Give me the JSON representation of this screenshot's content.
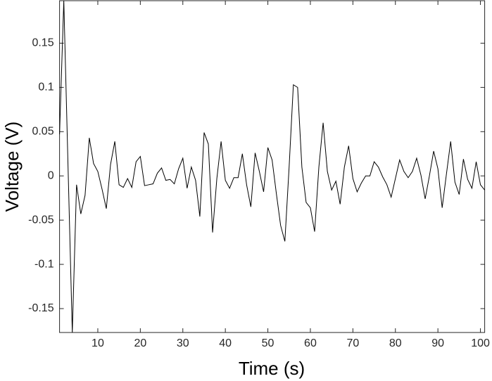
{
  "chart_data": {
    "type": "line",
    "xlabel": "Time (s)",
    "ylabel": "Voltage (V)",
    "x": [
      1,
      2,
      3,
      4,
      5,
      6,
      7,
      8,
      9,
      10,
      11,
      12,
      13,
      14,
      15,
      16,
      17,
      18,
      19,
      20,
      21,
      22,
      23,
      24,
      25,
      26,
      27,
      28,
      29,
      30,
      31,
      32,
      33,
      34,
      35,
      36,
      37,
      38,
      39,
      40,
      41,
      42,
      43,
      44,
      45,
      46,
      47,
      48,
      49,
      50,
      51,
      52,
      53,
      54,
      55,
      56,
      57,
      58,
      59,
      60,
      61,
      62,
      63,
      64,
      65,
      66,
      67,
      68,
      69,
      70,
      71,
      72,
      73,
      74,
      75,
      76,
      77,
      78,
      79,
      80,
      81,
      82,
      83,
      84,
      85,
      86,
      87,
      88,
      89,
      90,
      91,
      92,
      93,
      94,
      95,
      96,
      97,
      98,
      99,
      100,
      101
    ],
    "series": [
      {
        "color": "#000000",
        "values": [
          0.047,
          0.198,
          0.01,
          -0.177,
          -0.01,
          -0.043,
          -0.022,
          0.043,
          0.014,
          0.005,
          -0.015,
          -0.037,
          0.013,
          0.039,
          -0.01,
          -0.013,
          -0.003,
          -0.013,
          0.016,
          0.022,
          -0.011,
          -0.01,
          -0.009,
          0.003,
          0.009,
          -0.005,
          -0.004,
          -0.009,
          0.008,
          0.02,
          -0.014,
          0.01,
          -0.005,
          -0.046,
          0.049,
          0.036,
          -0.064,
          -0.003,
          0.039,
          -0.005,
          -0.014,
          -0.002,
          -0.002,
          0.025,
          -0.01,
          -0.035,
          0.026,
          0.005,
          -0.018,
          0.032,
          0.018,
          -0.02,
          -0.056,
          -0.074,
          0.01,
          0.103,
          0.1,
          0.01,
          -0.03,
          -0.036,
          -0.063,
          0.01,
          0.06,
          0.005,
          -0.016,
          -0.006,
          -0.032,
          0.01,
          0.034,
          -0.003,
          -0.018,
          -0.008,
          0,
          0,
          0.016,
          0.01,
          -0.001,
          -0.01,
          -0.024,
          -0.003,
          0.018,
          0.005,
          -0.002,
          0.005,
          0.02,
          0.001,
          -0.026,
          0,
          0.028,
          0.008,
          -0.036,
          0.002,
          0.039,
          -0.007,
          -0.021,
          0.019,
          -0.004,
          -0.014,
          0.016,
          -0.01,
          -0.016
        ]
      }
    ],
    "xlim": [
      1,
      101
    ],
    "ylim": [
      -0.177,
      0.198
    ],
    "xticks": [
      10,
      20,
      30,
      40,
      50,
      60,
      70,
      80,
      90,
      100
    ],
    "yticks": [
      -0.15,
      -0.1,
      -0.05,
      0,
      0.05,
      0.1,
      0.15
    ],
    "grid": false
  }
}
